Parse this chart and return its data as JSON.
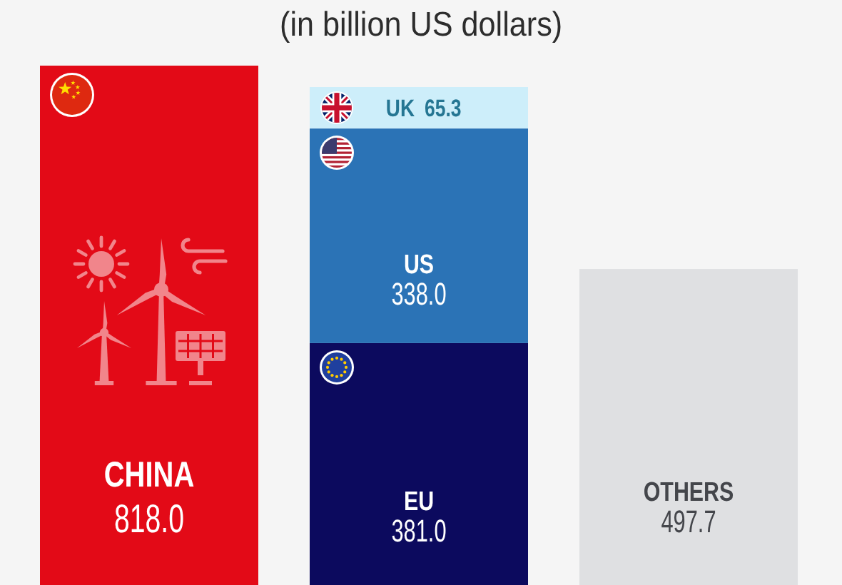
{
  "chart_data": {
    "type": "bar",
    "subtitle": "(in billion US dollars)",
    "categories": [
      null,
      null,
      null
    ],
    "stacked": true,
    "series": [
      {
        "name": "CHINA",
        "color": "#e30a17",
        "values": [
          818.0,
          null,
          null
        ],
        "value_labels": [
          "818.0",
          null,
          null
        ]
      },
      {
        "name": "EU",
        "color": "#0c0a5e",
        "values": [
          null,
          381.0,
          null
        ],
        "value_labels": [
          null,
          "381.0",
          null
        ]
      },
      {
        "name": "US",
        "color": "#2b73b6",
        "values": [
          null,
          338.0,
          null
        ],
        "value_labels": [
          null,
          "338.0",
          null
        ]
      },
      {
        "name": "UK",
        "color": "#cdeefa",
        "values": [
          null,
          65.3,
          null
        ],
        "value_labels": [
          null,
          "65.3",
          null
        ]
      },
      {
        "name": "OTHERS",
        "color": "#dfe0e2",
        "values": [
          null,
          null,
          497.7
        ],
        "value_labels": [
          null,
          null,
          "497.7"
        ]
      }
    ]
  }
}
